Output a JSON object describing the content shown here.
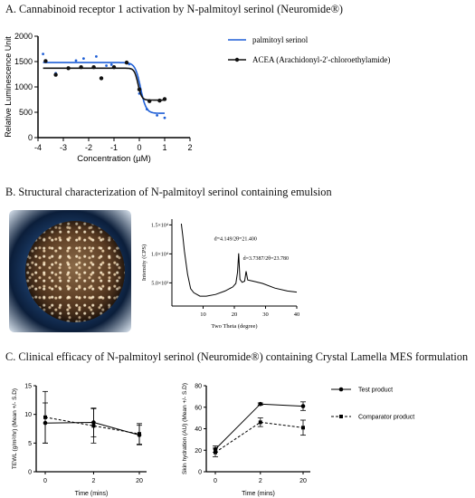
{
  "section_a": {
    "title": "A. Cannabinoid receptor 1 activation by N-palmitoyl serinol (Neuromide®)"
  },
  "section_b": {
    "title": "B. Structural characterization of N-palmitoyl serinol containing emulsion"
  },
  "section_c": {
    "title": "C. Clinical efficacy of N-palmitoyl serinol (Neuromide®) containing Crystal Lamella MES formulation"
  },
  "colors": {
    "blue": "#1f5fd6",
    "black": "#111111",
    "micro_bg": "#1d3f6d"
  },
  "chart_data": [
    {
      "id": "A",
      "type": "scatter",
      "xlabel": "Concentration (µM)",
      "ylabel": "Relative Luminescence Unit",
      "xlim": [
        -4,
        1
      ],
      "ylim": [
        0,
        2000
      ],
      "xticks": [
        "-4",
        "-3",
        "-2",
        "-1",
        "0",
        "1",
        "2"
      ],
      "yticks": [
        "0",
        "500",
        "1000",
        "1500",
        "2000"
      ],
      "legend": "right",
      "series": [
        {
          "name": "palmitoyl serinol",
          "color": "#1f5fd6",
          "points": [
            [
              -3.8,
              1650
            ],
            [
              -3.3,
              1270
            ],
            [
              -2.5,
              1520
            ],
            [
              -2.2,
              1560
            ],
            [
              -1.7,
              1600
            ],
            [
              -1.3,
              1420
            ],
            [
              -1.1,
              1440
            ],
            [
              -0.4,
              1450
            ],
            [
              0,
              870
            ],
            [
              0.3,
              560
            ],
            [
              0.7,
              440
            ],
            [
              1,
              390
            ]
          ],
          "fit": {
            "top": 1480,
            "bottom": 480,
            "logec50": 0.05,
            "hill": -4
          }
        },
        {
          "name": "ACEA (Arachidonyl-2'-chloroethylamide)",
          "color": "#111111",
          "points": [
            [
              -3.7,
              1510
            ],
            [
              -3.3,
              1240
            ],
            [
              -2.8,
              1370
            ],
            [
              -2.3,
              1390
            ],
            [
              -1.8,
              1390
            ],
            [
              -1.5,
              1170
            ],
            [
              -1.0,
              1390
            ],
            [
              -0.5,
              1480
            ],
            [
              0,
              950
            ],
            [
              0.4,
              720
            ],
            [
              0.8,
              730
            ],
            [
              1,
              760
            ]
          ],
          "fit": {
            "top": 1370,
            "bottom": 740,
            "logec50": -0.05,
            "hill": -6
          }
        }
      ]
    },
    {
      "id": "B",
      "type": "line",
      "xlabel": "Two Theta (degree)",
      "ylabel": "Intensity (CPS)",
      "xlim": [
        0,
        40
      ],
      "xticks": [
        "10",
        "20",
        "30",
        "40"
      ],
      "yticks": [
        "5.0×10³",
        "1.0×10⁴",
        "1.5×10⁴"
      ],
      "annotations": [
        "d=4.149/2θ=21.400",
        "d=3.7387/2θ=23.780"
      ]
    },
    {
      "id": "C1",
      "type": "line",
      "xlabel": "Time (mins)",
      "ylabel": "TEWL (g/m²/hr) (Mean +/- S.D)",
      "categories": [
        "0",
        "2",
        "20"
      ],
      "ylim": [
        0,
        15
      ],
      "yticks": [
        "0",
        "5",
        "10",
        "15"
      ],
      "series": [
        {
          "name": "Test product",
          "values": [
            8.5,
            8.6,
            6.4
          ],
          "err": [
            3.5,
            2.5,
            1.7
          ]
        },
        {
          "name": "Comparator product",
          "values": [
            9.5,
            8.0,
            6.6
          ],
          "err": [
            4.5,
            3.0,
            1.8
          ]
        }
      ]
    },
    {
      "id": "C2",
      "type": "line",
      "xlabel": "Time (mins)",
      "ylabel": "Skin hydration (AU) (Mean +/- S.D)",
      "categories": [
        "0",
        "2",
        "20"
      ],
      "ylim": [
        0,
        80
      ],
      "yticks": [
        "0",
        "20",
        "40",
        "60",
        "80"
      ],
      "legend": "right",
      "series": [
        {
          "name": "Test product",
          "values": [
            21,
            63,
            61
          ],
          "err": [
            3,
            1,
            4
          ]
        },
        {
          "name": "Comparator product",
          "values": [
            18,
            46,
            41
          ],
          "err": [
            4,
            4,
            7
          ]
        }
      ]
    }
  ]
}
